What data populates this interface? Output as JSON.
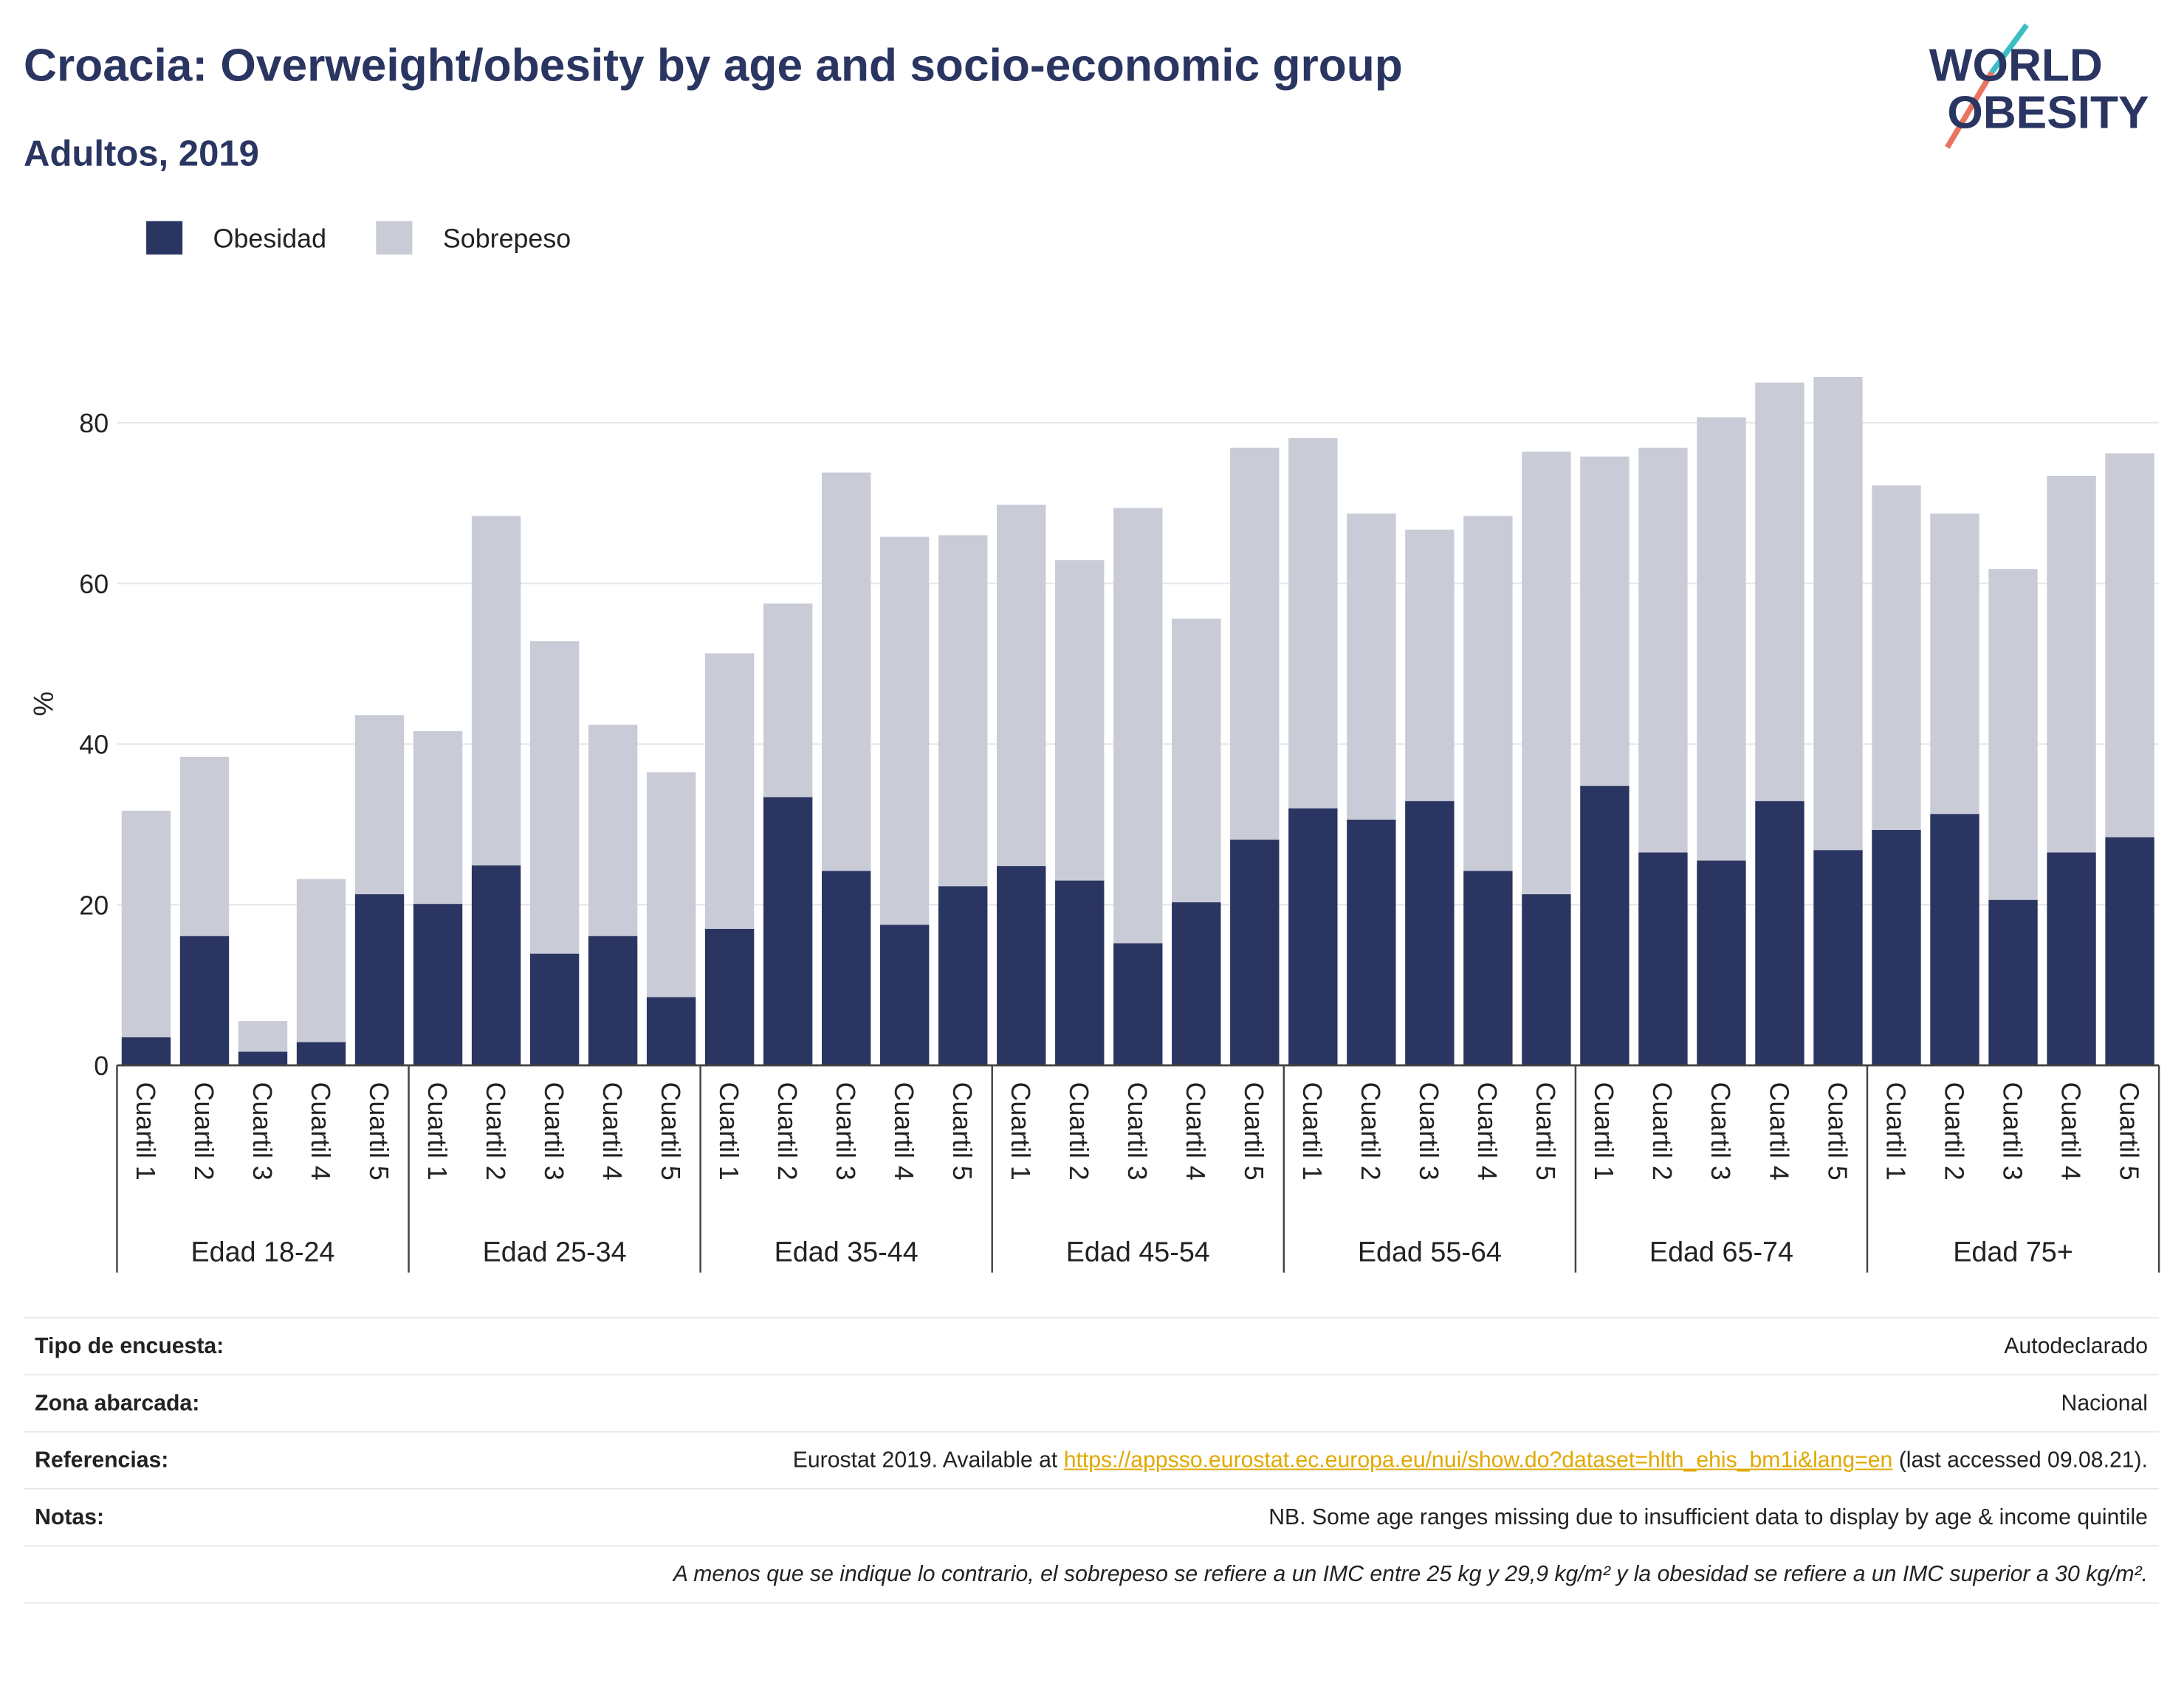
{
  "chart_data": {
    "type": "bar",
    "stacked": true,
    "title": "Croacia: Overweight/obesity by age and socio-economic group",
    "subtitle": "Adultos, 2019",
    "y_label": "%",
    "groups": [
      {
        "name": "Edad 18-24",
        "categories": [
          "Cuartil 1",
          "Cuartil 2",
          "Cuartil 3",
          "Cuartil 4",
          "Cuartil 5"
        ]
      },
      {
        "name": "Edad 25-34",
        "categories": [
          "Cuartil 1",
          "Cuartil 2",
          "Cuartil 3",
          "Cuartil 4",
          "Cuartil 5"
        ]
      },
      {
        "name": "Edad 35-44",
        "categories": [
          "Cuartil 1",
          "Cuartil 2",
          "Cuartil 3",
          "Cuartil 4",
          "Cuartil 5"
        ]
      },
      {
        "name": "Edad 45-54",
        "categories": [
          "Cuartil 1",
          "Cuartil 2",
          "Cuartil 3",
          "Cuartil 4",
          "Cuartil 5"
        ]
      },
      {
        "name": "Edad 55-64",
        "categories": [
          "Cuartil 1",
          "Cuartil 2",
          "Cuartil 3",
          "Cuartil 4",
          "Cuartil 5"
        ]
      },
      {
        "name": "Edad 65-74",
        "categories": [
          "Cuartil 1",
          "Cuartil 2",
          "Cuartil 3",
          "Cuartil 4",
          "Cuartil 5"
        ]
      },
      {
        "name": "Edad 75+",
        "categories": [
          "Cuartil 1",
          "Cuartil 2",
          "Cuartil 3",
          "Cuartil 4",
          "Cuartil 5"
        ]
      }
    ],
    "series": [
      {
        "name": "Obesidad",
        "color": "#2a3561",
        "values": [
          3.5,
          16.1,
          1.7,
          2.9,
          21.3,
          20.1,
          24.9,
          13.9,
          16.1,
          8.5,
          17.0,
          33.4,
          24.2,
          17.5,
          22.3,
          24.8,
          23.0,
          15.2,
          20.3,
          28.1,
          32.0,
          30.6,
          32.9,
          24.2,
          21.3,
          34.8,
          26.5,
          25.5,
          32.9,
          26.8,
          29.3,
          31.3,
          20.6,
          26.5,
          28.4
        ]
      },
      {
        "name": "Sobrepeso",
        "color": "#c9cbd7",
        "values": [
          28.2,
          22.3,
          3.8,
          20.3,
          22.3,
          21.5,
          43.5,
          38.9,
          26.3,
          28.0,
          34.3,
          24.1,
          49.6,
          48.3,
          43.7,
          45.0,
          39.9,
          54.2,
          35.3,
          48.8,
          46.1,
          38.1,
          33.8,
          44.2,
          55.1,
          41.0,
          50.4,
          55.2,
          52.1,
          58.9,
          42.9,
          37.4,
          41.2,
          46.9,
          47.8
        ]
      }
    ],
    "ylim": [
      0,
      88
    ],
    "yticks": [
      0,
      20,
      40,
      60,
      80
    ],
    "grid": true
  },
  "logo": {
    "line1": "WORLD",
    "line2": "OBESITY"
  },
  "info": {
    "rows": [
      {
        "label": "Tipo de encuesta:",
        "value": "Autodeclarado"
      },
      {
        "label": "Zona abarcada:",
        "value": "Nacional"
      },
      {
        "label": "Referencias:",
        "text": "Eurostat 2019. Available at",
        "link": "https://appsso.eurostat.ec.europa.eu/nui/show.do?dataset=hlth_ehis_bm1i&lang=en",
        "after": "(last accessed 09.08.21)."
      },
      {
        "label": "Notas:",
        "value": "NB. Some age ranges missing due to insufficient data to display by age & income quintile"
      }
    ],
    "footnote": "A menos que se indique lo contrario, el sobrepeso se refiere a un IMC entre 25 kg y 29,9 kg/m² y la obesidad se refiere a un IMC superior a 30 kg/m²."
  }
}
